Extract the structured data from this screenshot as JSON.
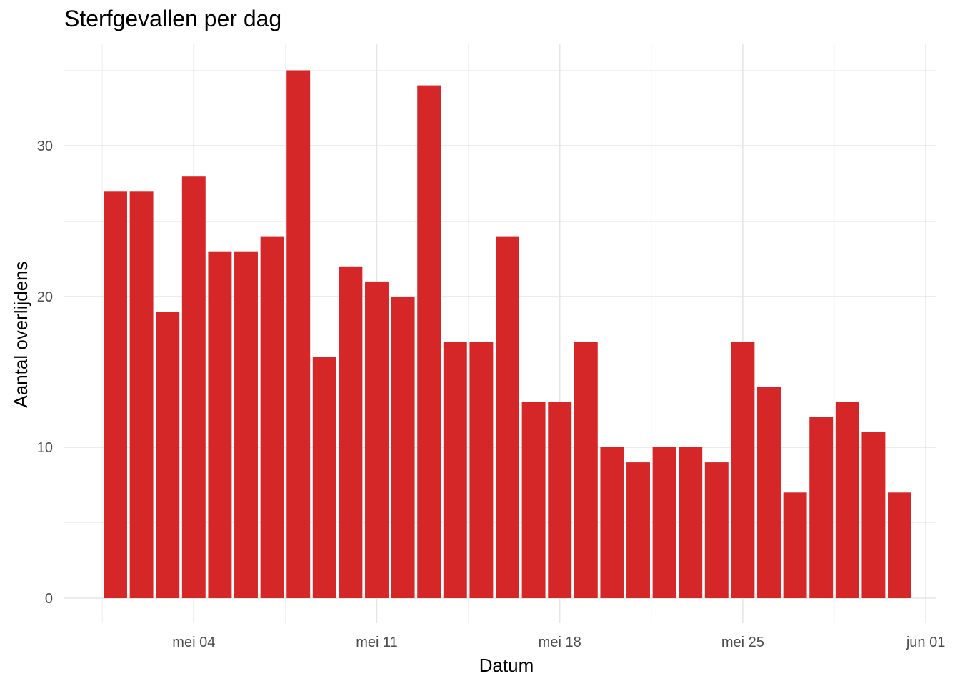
{
  "chart_data": {
    "type": "bar",
    "title": "Sterfgevallen per dag",
    "xlabel": "Datum",
    "ylabel": "Aantal overlijdens",
    "bar_color": "#d62728",
    "grid": true,
    "x_start": "2020-05-01",
    "x_end": "2020-05-31",
    "x_ticks": [
      {
        "date": "2020-05-04",
        "label": "mei 04"
      },
      {
        "date": "2020-05-11",
        "label": "mei 11"
      },
      {
        "date": "2020-05-18",
        "label": "mei 18"
      },
      {
        "date": "2020-05-25",
        "label": "mei 25"
      },
      {
        "date": "2020-06-01",
        "label": "jun 01"
      }
    ],
    "y_ticks": [
      0,
      10,
      20,
      30
    ],
    "ylim": [
      0,
      35
    ],
    "x": [
      "2020-05-01",
      "2020-05-02",
      "2020-05-03",
      "2020-05-04",
      "2020-05-05",
      "2020-05-06",
      "2020-05-07",
      "2020-05-08",
      "2020-05-09",
      "2020-05-10",
      "2020-05-11",
      "2020-05-12",
      "2020-05-13",
      "2020-05-14",
      "2020-05-15",
      "2020-05-16",
      "2020-05-17",
      "2020-05-18",
      "2020-05-19",
      "2020-05-20",
      "2020-05-21",
      "2020-05-22",
      "2020-05-23",
      "2020-05-24",
      "2020-05-25",
      "2020-05-26",
      "2020-05-27",
      "2020-05-28",
      "2020-05-29",
      "2020-05-30",
      "2020-05-31"
    ],
    "values": [
      27,
      27,
      19,
      28,
      23,
      23,
      24,
      35,
      16,
      22,
      21,
      20,
      34,
      17,
      17,
      24,
      13,
      13,
      17,
      10,
      9,
      10,
      10,
      9,
      17,
      14,
      7,
      12,
      13,
      11,
      7
    ]
  }
}
